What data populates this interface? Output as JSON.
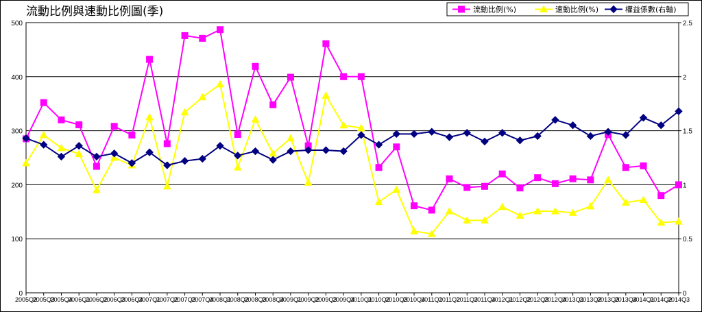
{
  "chart_data": {
    "type": "line",
    "title": "流動比例與速動比例圖(季)",
    "categories": [
      "2005Q2",
      "2005Q3",
      "2005Q4",
      "2006Q1",
      "2006Q2",
      "2006Q3",
      "2006Q4",
      "2007Q1",
      "2007Q2",
      "2007Q3",
      "2007Q4",
      "2008Q1",
      "2008Q2",
      "2008Q3",
      "2008Q4",
      "2009Q1",
      "2009Q2",
      "2009Q3",
      "2009Q4",
      "2010Q1",
      "2010Q2",
      "2010Q3",
      "2010Q4",
      "2011Q1",
      "2011Q2",
      "2011Q3",
      "2011Q4",
      "2012Q1",
      "2012Q2",
      "2012Q3",
      "2012Q4",
      "2013Q1",
      "2013Q2",
      "2013Q3",
      "2013Q4",
      "2014Q1",
      "2014Q2",
      "2014Q3"
    ],
    "ylim_left": [
      0,
      500
    ],
    "yticks_left": [
      "0",
      "100",
      "200",
      "300",
      "400",
      "500"
    ],
    "ylim_right": [
      0,
      2.5
    ],
    "yticks_right": [
      "0",
      "0.5",
      "1",
      "1.5",
      "2",
      "2.5"
    ],
    "grid": true,
    "legend_position": "top-right",
    "series": [
      {
        "name": "流動比例(%)",
        "axis": "left",
        "color": "#ff00ff",
        "marker": "square",
        "values": [
          285,
          352,
          320,
          311,
          234,
          308,
          292,
          432,
          276,
          476,
          471,
          487,
          293,
          419,
          348,
          399,
          272,
          461,
          400,
          400,
          232,
          270,
          161,
          153,
          211,
          195,
          197,
          220,
          194,
          213,
          202,
          211,
          209,
          293,
          232,
          235,
          180,
          200
        ]
      },
      {
        "name": "速動比例(%)",
        "axis": "left",
        "color": "#ffff00",
        "marker": "triangle",
        "values": [
          240,
          292,
          268,
          257,
          190,
          250,
          236,
          325,
          197,
          334,
          362,
          386,
          232,
          321,
          258,
          286,
          204,
          365,
          310,
          305,
          168,
          191,
          114,
          109,
          151,
          134,
          134,
          159,
          143,
          151,
          151,
          148,
          160,
          209,
          167,
          172,
          130,
          132
        ]
      },
      {
        "name": "權益係數(右軸)",
        "axis": "right",
        "color": "#000080",
        "marker": "diamond",
        "values": [
          1.43,
          1.37,
          1.26,
          1.36,
          1.26,
          1.29,
          1.2,
          1.3,
          1.18,
          1.22,
          1.24,
          1.36,
          1.27,
          1.31,
          1.23,
          1.31,
          1.32,
          1.32,
          1.31,
          1.46,
          1.37,
          1.47,
          1.47,
          1.49,
          1.44,
          1.48,
          1.4,
          1.48,
          1.41,
          1.45,
          1.6,
          1.55,
          1.45,
          1.49,
          1.46,
          1.62,
          1.55,
          1.68
        ]
      }
    ]
  }
}
